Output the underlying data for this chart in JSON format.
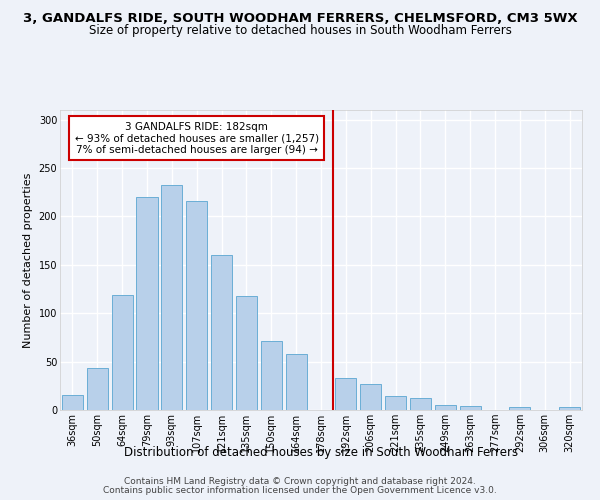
{
  "title": "3, GANDALFS RIDE, SOUTH WOODHAM FERRERS, CHELMSFORD, CM3 5WX",
  "subtitle": "Size of property relative to detached houses in South Woodham Ferrers",
  "xlabel": "Distribution of detached houses by size in South Woodham Ferrers",
  "ylabel": "Number of detached properties",
  "footer_line1": "Contains HM Land Registry data © Crown copyright and database right 2024.",
  "footer_line2": "Contains public sector information licensed under the Open Government Licence v3.0.",
  "bar_labels": [
    "36sqm",
    "50sqm",
    "64sqm",
    "79sqm",
    "93sqm",
    "107sqm",
    "121sqm",
    "135sqm",
    "150sqm",
    "164sqm",
    "178sqm",
    "192sqm",
    "206sqm",
    "221sqm",
    "235sqm",
    "249sqm",
    "263sqm",
    "277sqm",
    "292sqm",
    "306sqm",
    "320sqm"
  ],
  "bar_values": [
    15,
    43,
    119,
    220,
    233,
    216,
    160,
    118,
    71,
    58,
    0,
    33,
    27,
    14,
    12,
    5,
    4,
    0,
    3,
    0,
    3
  ],
  "bar_color": "#b8d0ea",
  "bar_edge_color": "#6aaed6",
  "vline_color": "#cc0000",
  "annotation_text_line1": "3 GANDALFS RIDE: 182sqm",
  "annotation_text_line2": "← 93% of detached houses are smaller (1,257)",
  "annotation_text_line3": "7% of semi-detached houses are larger (94) →",
  "annotation_box_facecolor": "#ffffff",
  "annotation_box_edgecolor": "#cc0000",
  "ylim": [
    0,
    310
  ],
  "yticks": [
    0,
    50,
    100,
    150,
    200,
    250,
    300
  ],
  "background_color": "#eef2f9",
  "grid_color": "#ffffff",
  "title_fontsize": 9.5,
  "subtitle_fontsize": 8.5,
  "xlabel_fontsize": 8.5,
  "ylabel_fontsize": 8,
  "tick_fontsize": 7,
  "annotation_fontsize": 7.5,
  "footer_fontsize": 6.5
}
